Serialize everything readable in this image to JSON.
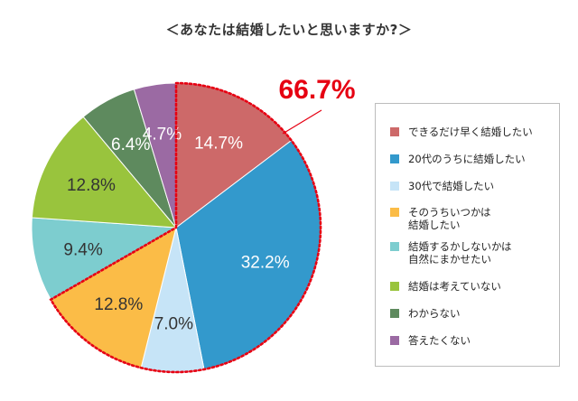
{
  "title": "＜あなたは結婚したいと思いますか?＞",
  "highlight_label": "66.7%",
  "highlight_color": "#e60012",
  "chart_data": {
    "type": "pie",
    "title": "＜あなたは結婚したいと思いますか?＞",
    "start_angle_deg": 0,
    "direction": "clockwise",
    "legend_position": "right",
    "slices": [
      {
        "name": "できるだけ早く結婚したい",
        "value": 14.7,
        "label": "14.7%",
        "color": "#cd6969"
      },
      {
        "name": "20代のうちに結婚したい",
        "value": 32.2,
        "label": "32.2%",
        "color": "#3399cc"
      },
      {
        "name": "30代で結婚したい",
        "value": 7.0,
        "label": "7.0%",
        "color": "#c6e4f7"
      },
      {
        "name": "そのうちいつかは\n結婚したい",
        "value": 12.8,
        "label": "12.8%",
        "color": "#fbbc47"
      },
      {
        "name": "結婚するかしないかは\n自然にまかせたい",
        "value": 9.4,
        "label": "9.4%",
        "color": "#7dcdcf"
      },
      {
        "name": "結婚は考えていない",
        "value": 12.8,
        "label": "12.8%",
        "color": "#99c43d"
      },
      {
        "name": "わからない",
        "value": 6.4,
        "label": "6.4%",
        "color": "#5e8a5e"
      },
      {
        "name": "答えたくない",
        "value": 4.7,
        "label": "4.7%",
        "color": "#9b6aa3"
      }
    ],
    "highlight_group": [
      0,
      1,
      2,
      3
    ]
  }
}
